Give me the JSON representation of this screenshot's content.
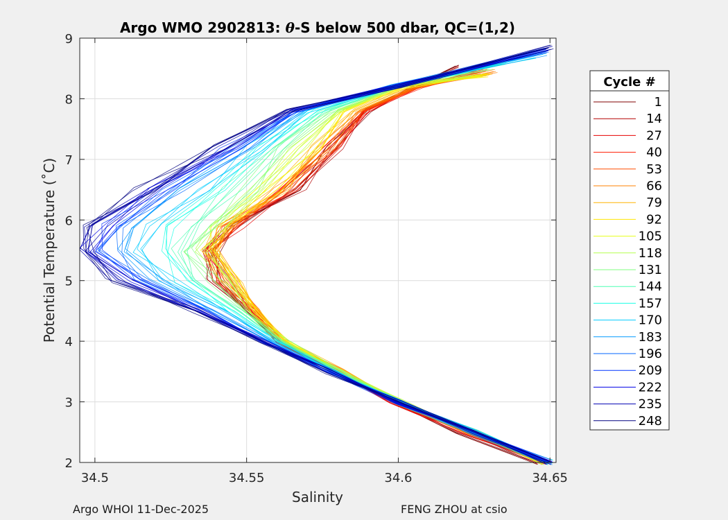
{
  "chart_data": {
    "type": "line",
    "title_parts": [
      "Argo WMO 2902813: ",
      "θ",
      "-S below 500 dbar,  QC=(1,2)"
    ],
    "xlabel": "Salinity",
    "ylabel": "Potential Temperature (˚C)",
    "xlim": [
      34.495,
      34.652
    ],
    "ylim": [
      2,
      9
    ],
    "xticks": [
      34.5,
      34.55,
      34.6,
      34.65
    ],
    "xtick_labels": [
      "34.5",
      "34.55",
      "34.6",
      "34.65"
    ],
    "yticks": [
      2,
      3,
      4,
      5,
      6,
      7,
      8,
      9
    ],
    "ytick_labels": [
      "2",
      "3",
      "4",
      "5",
      "6",
      "7",
      "8",
      "9"
    ],
    "grid": true,
    "legend_title": "Cycle #",
    "legend_placement": "right-outside",
    "series": [
      {
        "name": "1",
        "color": "#800000",
        "temperature": [
          8.55,
          8.2,
          7.8,
          7.2,
          6.5,
          5.9,
          5.5,
          5.0,
          4.5,
          4.0,
          3.5,
          3.0,
          2.5,
          2.0
        ],
        "salinity": [
          34.62,
          34.605,
          34.59,
          34.58,
          34.567,
          34.548,
          34.54,
          34.54,
          34.55,
          34.56,
          34.58,
          34.597,
          34.62,
          34.646
        ]
      },
      {
        "name": "14",
        "color": "#b30000",
        "temperature": [
          8.5,
          8.2,
          7.8,
          7.2,
          6.5,
          5.9,
          5.5,
          5.0,
          4.5,
          4.0,
          3.5,
          3.0,
          2.5,
          2.0
        ],
        "salinity": [
          34.62,
          34.606,
          34.589,
          34.579,
          34.566,
          34.547,
          34.539,
          34.541,
          34.551,
          34.561,
          34.581,
          34.598,
          34.621,
          34.647
        ]
      },
      {
        "name": "27",
        "color": "#e60000",
        "temperature": [
          8.45,
          8.2,
          7.8,
          7.2,
          6.5,
          5.9,
          5.5,
          5.0,
          4.5,
          4.0,
          3.5,
          3.0,
          2.5,
          2.0
        ],
        "salinity": [
          34.625,
          34.606,
          34.59,
          34.58,
          34.565,
          34.546,
          34.538,
          34.542,
          34.552,
          34.561,
          34.58,
          34.598,
          34.622,
          34.647
        ]
      },
      {
        "name": "40",
        "color": "#ff1a00",
        "temperature": [
          8.45,
          8.2,
          7.8,
          7.2,
          6.5,
          5.9,
          5.5,
          5.0,
          4.5,
          4.0,
          3.5,
          3.0,
          2.5,
          2.0
        ],
        "salinity": [
          34.628,
          34.607,
          34.589,
          34.578,
          34.564,
          34.545,
          34.538,
          34.543,
          34.552,
          34.562,
          34.581,
          34.599,
          34.622,
          34.648
        ]
      },
      {
        "name": "53",
        "color": "#ff4d00",
        "temperature": [
          8.45,
          8.2,
          7.8,
          7.2,
          6.5,
          5.9,
          5.5,
          5.0,
          4.5,
          4.0,
          3.5,
          3.0,
          2.5,
          2.0
        ],
        "salinity": [
          34.63,
          34.607,
          34.588,
          34.577,
          34.563,
          34.545,
          34.539,
          34.544,
          34.553,
          34.562,
          34.581,
          34.599,
          34.623,
          34.648
        ]
      },
      {
        "name": "66",
        "color": "#ff8000",
        "temperature": [
          8.45,
          8.2,
          7.8,
          7.2,
          6.5,
          5.9,
          5.5,
          5.0,
          4.5,
          4.0,
          3.5,
          3.0,
          2.5,
          2.0
        ],
        "salinity": [
          34.632,
          34.606,
          34.587,
          34.576,
          34.562,
          34.544,
          34.54,
          34.544,
          34.553,
          34.563,
          34.582,
          34.6,
          34.623,
          34.648
        ]
      },
      {
        "name": "79",
        "color": "#ffb300",
        "temperature": [
          8.4,
          8.2,
          7.8,
          7.2,
          6.5,
          5.9,
          5.5,
          5.0,
          4.5,
          4.0,
          3.5,
          3.0,
          2.5,
          2.0
        ],
        "salinity": [
          34.63,
          34.604,
          34.585,
          34.575,
          34.56,
          34.543,
          34.538,
          34.545,
          34.553,
          34.563,
          34.582,
          34.6,
          34.624,
          34.648
        ]
      },
      {
        "name": "92",
        "color": "#ffe600",
        "temperature": [
          8.4,
          8.2,
          7.8,
          7.2,
          6.5,
          5.9,
          5.5,
          5.0,
          4.5,
          4.0,
          3.5,
          3.0,
          2.5,
          2.0
        ],
        "salinity": [
          34.63,
          34.603,
          34.583,
          34.573,
          34.558,
          34.542,
          34.537,
          34.544,
          34.553,
          34.563,
          34.581,
          34.601,
          34.624,
          34.648
        ]
      },
      {
        "name": "105",
        "color": "#e6ff1a",
        "temperature": [
          8.4,
          8.2,
          7.8,
          7.2,
          6.5,
          5.9,
          5.5,
          5.0,
          4.5,
          4.0,
          3.5,
          3.0,
          2.5,
          2.0
        ],
        "salinity": [
          34.628,
          34.602,
          34.581,
          34.57,
          34.556,
          34.541,
          34.537,
          34.543,
          34.552,
          34.563,
          34.581,
          34.601,
          34.624,
          34.648
        ]
      },
      {
        "name": "118",
        "color": "#b3ff4d",
        "temperature": [
          8.4,
          8.2,
          7.8,
          7.2,
          6.5,
          5.9,
          5.5,
          5.0,
          4.5,
          4.0,
          3.5,
          3.0,
          2.5,
          2.0
        ],
        "salinity": [
          34.625,
          34.6,
          34.579,
          34.567,
          34.553,
          34.54,
          34.536,
          34.542,
          34.551,
          34.562,
          34.581,
          34.601,
          34.625,
          34.649
        ]
      },
      {
        "name": "131",
        "color": "#80ff80",
        "temperature": [
          8.5,
          8.2,
          7.8,
          7.2,
          6.5,
          5.9,
          5.5,
          5.0,
          4.5,
          4.0,
          3.5,
          3.0,
          2.5,
          2.0
        ],
        "salinity": [
          34.63,
          34.599,
          34.577,
          34.564,
          34.55,
          34.537,
          34.533,
          34.54,
          34.55,
          34.562,
          34.58,
          34.6,
          34.625,
          34.649
        ]
      },
      {
        "name": "144",
        "color": "#4dffb3",
        "temperature": [
          8.6,
          8.2,
          7.8,
          7.2,
          6.5,
          5.9,
          5.5,
          5.0,
          4.5,
          4.0,
          3.5,
          3.0,
          2.5,
          2.0
        ],
        "salinity": [
          34.635,
          34.598,
          34.575,
          34.56,
          34.545,
          34.532,
          34.528,
          34.535,
          34.548,
          34.561,
          34.58,
          34.6,
          34.625,
          34.649
        ]
      },
      {
        "name": "157",
        "color": "#1affe6",
        "temperature": [
          8.7,
          8.2,
          7.8,
          7.2,
          6.5,
          5.9,
          5.5,
          5.0,
          4.5,
          4.0,
          3.5,
          3.0,
          2.5,
          2.0
        ],
        "salinity": [
          34.645,
          34.598,
          34.573,
          34.557,
          34.54,
          34.527,
          34.52,
          34.53,
          34.545,
          34.56,
          34.579,
          34.6,
          34.625,
          34.65
        ]
      },
      {
        "name": "170",
        "color": "#00ccff",
        "temperature": [
          8.75,
          8.2,
          7.8,
          7.2,
          6.5,
          5.9,
          5.5,
          5.0,
          4.5,
          4.0,
          3.5,
          3.0,
          2.5,
          2.0
        ],
        "salinity": [
          34.648,
          34.598,
          34.571,
          34.553,
          34.535,
          34.52,
          34.515,
          34.525,
          34.543,
          34.559,
          34.579,
          34.6,
          34.625,
          34.65
        ]
      },
      {
        "name": "183",
        "color": "#0099ff",
        "temperature": [
          8.75,
          8.2,
          7.8,
          7.2,
          6.5,
          5.9,
          5.5,
          5.0,
          4.5,
          4.0,
          3.5,
          3.0,
          2.5,
          2.0
        ],
        "salinity": [
          34.648,
          34.597,
          34.569,
          34.55,
          34.53,
          34.515,
          34.51,
          34.52,
          34.54,
          34.558,
          34.578,
          34.6,
          34.625,
          34.65
        ]
      },
      {
        "name": "196",
        "color": "#0066ff",
        "temperature": [
          8.8,
          8.2,
          7.8,
          7.2,
          6.5,
          5.9,
          5.5,
          5.0,
          4.5,
          4.0,
          3.5,
          3.0,
          2.5,
          2.0
        ],
        "salinity": [
          34.649,
          34.597,
          34.567,
          34.547,
          34.526,
          34.51,
          34.505,
          34.515,
          34.538,
          34.557,
          34.578,
          34.6,
          34.625,
          34.65
        ]
      },
      {
        "name": "209",
        "color": "#0033ff",
        "temperature": [
          8.8,
          8.2,
          7.8,
          7.2,
          6.5,
          5.9,
          5.5,
          5.0,
          4.5,
          4.0,
          3.5,
          3.0,
          2.5,
          2.0
        ],
        "salinity": [
          34.649,
          34.598,
          34.566,
          34.545,
          34.523,
          34.506,
          34.5,
          34.512,
          34.536,
          34.556,
          34.577,
          34.6,
          34.625,
          34.65
        ]
      },
      {
        "name": "222",
        "color": "#0000e6",
        "temperature": [
          8.8,
          8.2,
          7.8,
          7.2,
          6.5,
          5.9,
          5.5,
          5.0,
          4.5,
          4.0,
          3.5,
          3.0,
          2.5,
          2.0
        ],
        "salinity": [
          34.65,
          34.598,
          34.565,
          34.543,
          34.52,
          34.503,
          34.498,
          34.51,
          34.535,
          34.556,
          34.577,
          34.6,
          34.625,
          34.65
        ]
      },
      {
        "name": "235",
        "color": "#0000b3",
        "temperature": [
          8.85,
          8.2,
          7.8,
          7.2,
          6.5,
          5.9,
          5.5,
          5.0,
          4.5,
          4.0,
          3.5,
          3.0,
          2.5,
          2.0
        ],
        "salinity": [
          34.65,
          34.599,
          34.564,
          34.541,
          34.518,
          34.5,
          34.497,
          34.508,
          34.534,
          34.555,
          34.577,
          34.6,
          34.625,
          34.65
        ]
      },
      {
        "name": "248",
        "color": "#000080",
        "temperature": [
          8.85,
          8.2,
          7.8,
          7.2,
          6.5,
          5.9,
          5.5,
          5.0,
          4.5,
          4.0,
          3.5,
          3.0,
          2.5,
          2.0
        ],
        "salinity": [
          34.65,
          34.6,
          34.563,
          34.54,
          34.516,
          34.499,
          34.496,
          34.506,
          34.533,
          34.555,
          34.577,
          34.6,
          34.625,
          34.65
        ]
      }
    ]
  },
  "footer": {
    "left": "Argo WHOI 11-Dec-2025",
    "right": "FENG ZHOU at csio"
  }
}
